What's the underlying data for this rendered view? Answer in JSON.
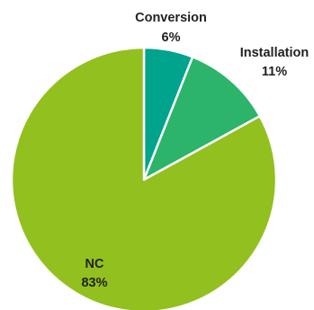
{
  "chart_data": {
    "type": "pie",
    "title": "",
    "slices": [
      {
        "label": "Conversion",
        "value": 6,
        "display": "6%",
        "color": "#00A38C"
      },
      {
        "label": "Installation",
        "value": 11,
        "display": "11%",
        "color": "#2BB46A"
      },
      {
        "label": "NC",
        "value": 83,
        "display": "83%",
        "color": "#92C01F"
      }
    ],
    "start_angle_deg": 0,
    "direction": "clockwise",
    "separator_color": "#FFFFFF"
  }
}
